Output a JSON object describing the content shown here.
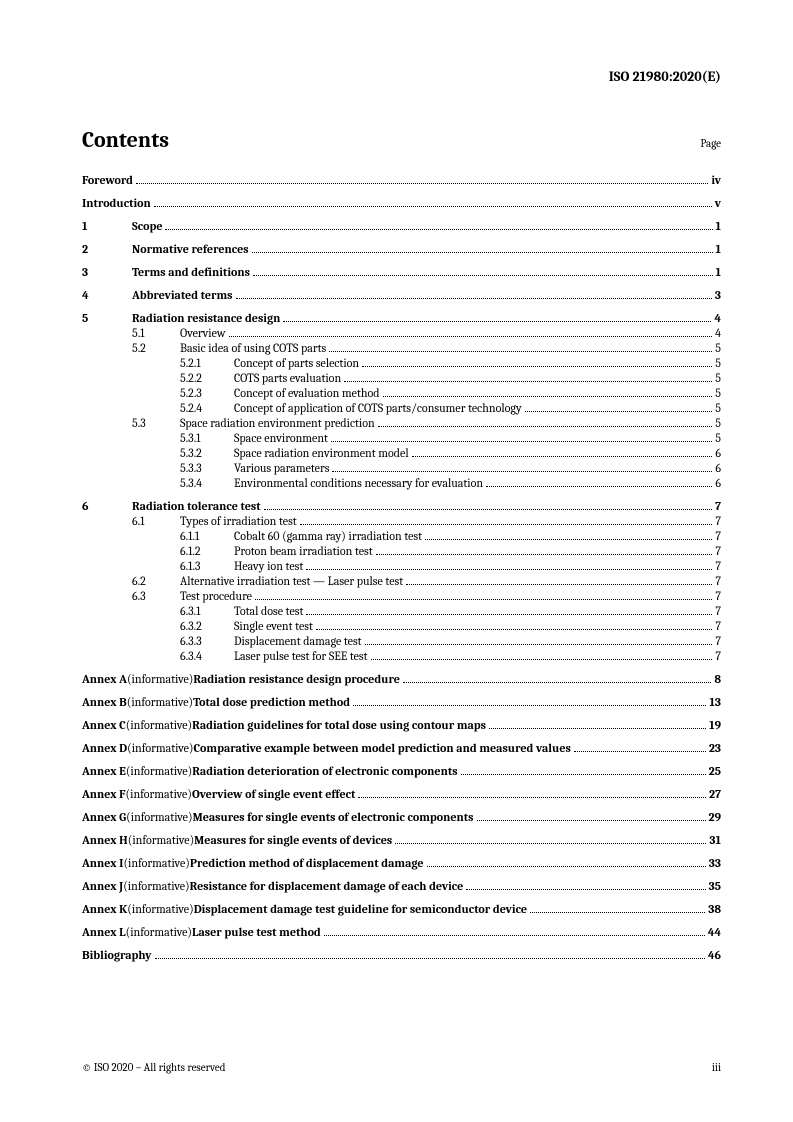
{
  "header": "ISO 21980:2020(E)",
  "contents_title": "Contents",
  "page_label": "Page",
  "front": [
    {
      "title": "Foreword",
      "page": "iv"
    },
    {
      "title": "Introduction",
      "page": "v"
    }
  ],
  "sections": [
    {
      "num": "1",
      "title": "Scope",
      "page": "1",
      "children": []
    },
    {
      "num": "2",
      "title": "Normative references",
      "page": "1",
      "children": []
    },
    {
      "num": "3",
      "title": "Terms and definitions",
      "page": "1",
      "children": []
    },
    {
      "num": "4",
      "title": "Abbreviated terms",
      "page": "3",
      "children": []
    },
    {
      "num": "5",
      "title": "Radiation resistance design",
      "page": "4",
      "children": [
        {
          "num": "5.1",
          "title": "Overview",
          "page": "4",
          "children": []
        },
        {
          "num": "5.2",
          "title": "Basic idea of using COTS parts",
          "page": "5",
          "children": [
            {
              "num": "5.2.1",
              "title": "Concept of parts selection",
              "page": "5"
            },
            {
              "num": "5.2.2",
              "title": "COTS parts evaluation",
              "page": "5"
            },
            {
              "num": "5.2.3",
              "title": "Concept of evaluation method",
              "page": "5"
            },
            {
              "num": "5.2.4",
              "title": "Concept of application of COTS parts/consumer technology",
              "page": "5"
            }
          ]
        },
        {
          "num": "5.3",
          "title": "Space radiation environment prediction",
          "page": "5",
          "children": [
            {
              "num": "5.3.1",
              "title": "Space environment",
              "page": "5"
            },
            {
              "num": "5.3.2",
              "title": "Space radiation environment model",
              "page": "6"
            },
            {
              "num": "5.3.3",
              "title": "Various parameters",
              "page": "6"
            },
            {
              "num": "5.3.4",
              "title": "Environmental conditions necessary for evaluation",
              "page": "6"
            }
          ]
        }
      ]
    },
    {
      "num": "6",
      "title": "Radiation tolerance test",
      "page": "7",
      "children": [
        {
          "num": "6.1",
          "title": "Types of irradiation test",
          "page": "7",
          "children": [
            {
              "num": "6.1.1",
              "title": "Cobalt 60 (gamma ray) irradiation test",
              "page": "7"
            },
            {
              "num": "6.1.2",
              "title": "Proton beam irradiation test",
              "page": "7"
            },
            {
              "num": "6.1.3",
              "title": "Heavy ion test",
              "page": "7"
            }
          ]
        },
        {
          "num": "6.2",
          "title": "Alternative irradiation test — Laser pulse test",
          "page": "7",
          "children": []
        },
        {
          "num": "6.3",
          "title": "Test procedure",
          "page": "7",
          "children": [
            {
              "num": "6.3.1",
              "title": "Total dose test",
              "page": "7"
            },
            {
              "num": "6.3.2",
              "title": "Single event test",
              "page": "7"
            },
            {
              "num": "6.3.3",
              "title": "Displacement damage test",
              "page": "7"
            },
            {
              "num": "6.3.4",
              "title": "Laser pulse test for SEE test",
              "page": "7"
            }
          ]
        }
      ]
    }
  ],
  "annexes": [
    {
      "label": "Annex A",
      "info": "(informative)",
      "title": "Radiation resistance design procedure",
      "page": "8"
    },
    {
      "label": "Annex B",
      "info": "(informative)",
      "title": "Total dose prediction method",
      "page": "13"
    },
    {
      "label": "Annex C",
      "info": "(informative)",
      "title": "Radiation guidelines for total dose using contour maps",
      "page": "19"
    },
    {
      "label": "Annex D",
      "info": "(informative)",
      "title": "Comparative example between model prediction and measured values",
      "page": "23"
    },
    {
      "label": "Annex E",
      "info": "(informative)",
      "title": "Radiation deterioration of electronic components",
      "page": "25"
    },
    {
      "label": "Annex F",
      "info": "(informative)",
      "title": "Overview of single event effect",
      "page": "27"
    },
    {
      "label": "Annex G",
      "info": "(informative)",
      "title": "Measures for single events of electronic components",
      "page": "29"
    },
    {
      "label": "Annex H",
      "info": "(informative)",
      "title": "Measures for single events of devices",
      "page": "31"
    },
    {
      "label": "Annex I",
      "info": "(informative)",
      "title": "Prediction method of displacement damage",
      "page": "33"
    },
    {
      "label": "Annex J",
      "info": "(informative)",
      "title": "Resistance for displacement damage of each device",
      "page": "35"
    },
    {
      "label": "Annex K",
      "info": "(informative)",
      "title": "Displacement damage test guideline for semiconductor device",
      "page": "38"
    },
    {
      "label": "Annex L",
      "info": "(informative)",
      "title": "Laser pulse test method",
      "page": "44"
    }
  ],
  "bibliography": {
    "title": "Bibliography",
    "page": "46"
  },
  "footer_left": "© ISO 2020 – All rights reserved",
  "footer_right": "iii"
}
